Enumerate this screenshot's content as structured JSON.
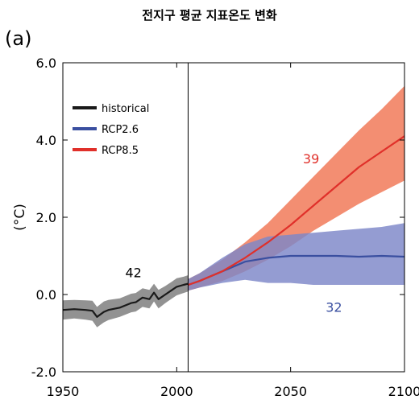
{
  "chart_data": {
    "type": "line",
    "title": "전지구 평균 지표온도 변화",
    "panel_label": "(a)",
    "ylabel": "(°C)",
    "xlabel": "",
    "xlim": [
      1950,
      2100
    ],
    "ylim": [
      -2.0,
      6.0
    ],
    "x_ticks": [
      1950,
      2000,
      2050,
      2100
    ],
    "x_tick_labels": [
      "1950",
      "2000",
      "2050",
      "2100"
    ],
    "y_ticks": [
      -2.0,
      0.0,
      2.0,
      4.0,
      6.0
    ],
    "y_tick_labels": [
      "-2.0",
      "0.0",
      "2.0",
      "4.0",
      "6.0"
    ],
    "grid": false,
    "legend_position": "top-left",
    "divider_x": 2005,
    "series": [
      {
        "name": "historical",
        "color": "#1a1a1a",
        "band_color": "#8c8c8c",
        "x": [
          1950,
          1955,
          1960,
          1963,
          1965,
          1968,
          1970,
          1975,
          1980,
          1982,
          1985,
          1988,
          1990,
          1992,
          1995,
          1998,
          2000,
          2003,
          2005
        ],
        "y": [
          -0.4,
          -0.38,
          -0.4,
          -0.42,
          -0.58,
          -0.45,
          -0.4,
          -0.34,
          -0.22,
          -0.2,
          -0.08,
          -0.12,
          0.05,
          -0.12,
          0.0,
          0.12,
          0.2,
          0.25,
          0.28
        ],
        "lower": [
          -0.65,
          -0.62,
          -0.65,
          -0.68,
          -0.85,
          -0.72,
          -0.66,
          -0.58,
          -0.46,
          -0.44,
          -0.32,
          -0.36,
          -0.18,
          -0.36,
          -0.22,
          -0.1,
          -0.02,
          0.04,
          0.08
        ],
        "upper": [
          -0.15,
          -0.14,
          -0.15,
          -0.16,
          -0.32,
          -0.18,
          -0.14,
          -0.1,
          0.02,
          0.04,
          0.16,
          0.12,
          0.28,
          0.12,
          0.22,
          0.34,
          0.42,
          0.46,
          0.5
        ],
        "model_count": "42",
        "count_x": 1981,
        "count_y": 0.45
      },
      {
        "name": "RCP2.6",
        "color": "#3a4fa0",
        "band_color": "#7d86c8",
        "x": [
          2005,
          2010,
          2020,
          2030,
          2040,
          2050,
          2060,
          2070,
          2080,
          2090,
          2100
        ],
        "y": [
          0.25,
          0.35,
          0.6,
          0.85,
          0.95,
          1.0,
          1.0,
          1.0,
          0.98,
          1.0,
          0.98
        ],
        "lower": [
          0.1,
          0.18,
          0.3,
          0.38,
          0.3,
          0.3,
          0.25,
          0.25,
          0.25,
          0.25,
          0.25
        ],
        "upper": [
          0.4,
          0.55,
          0.95,
          1.3,
          1.5,
          1.55,
          1.6,
          1.65,
          1.7,
          1.75,
          1.85
        ],
        "model_count": "32",
        "count_x": 2069,
        "count_y": -0.45
      },
      {
        "name": "RCP8.5",
        "color": "#e0302a",
        "band_color": "#f2886a",
        "x": [
          2005,
          2010,
          2020,
          2030,
          2040,
          2050,
          2060,
          2070,
          2080,
          2090,
          2100
        ],
        "y": [
          0.25,
          0.35,
          0.6,
          0.95,
          1.35,
          1.8,
          2.3,
          2.8,
          3.3,
          3.7,
          4.1
        ],
        "lower": [
          0.1,
          0.18,
          0.35,
          0.6,
          0.9,
          1.25,
          1.65,
          2.0,
          2.35,
          2.65,
          2.95
        ],
        "upper": [
          0.4,
          0.55,
          0.9,
          1.35,
          1.85,
          2.45,
          3.05,
          3.65,
          4.25,
          4.8,
          5.4
        ],
        "model_count": "39",
        "count_x": 2059,
        "count_y": 3.4
      }
    ]
  }
}
